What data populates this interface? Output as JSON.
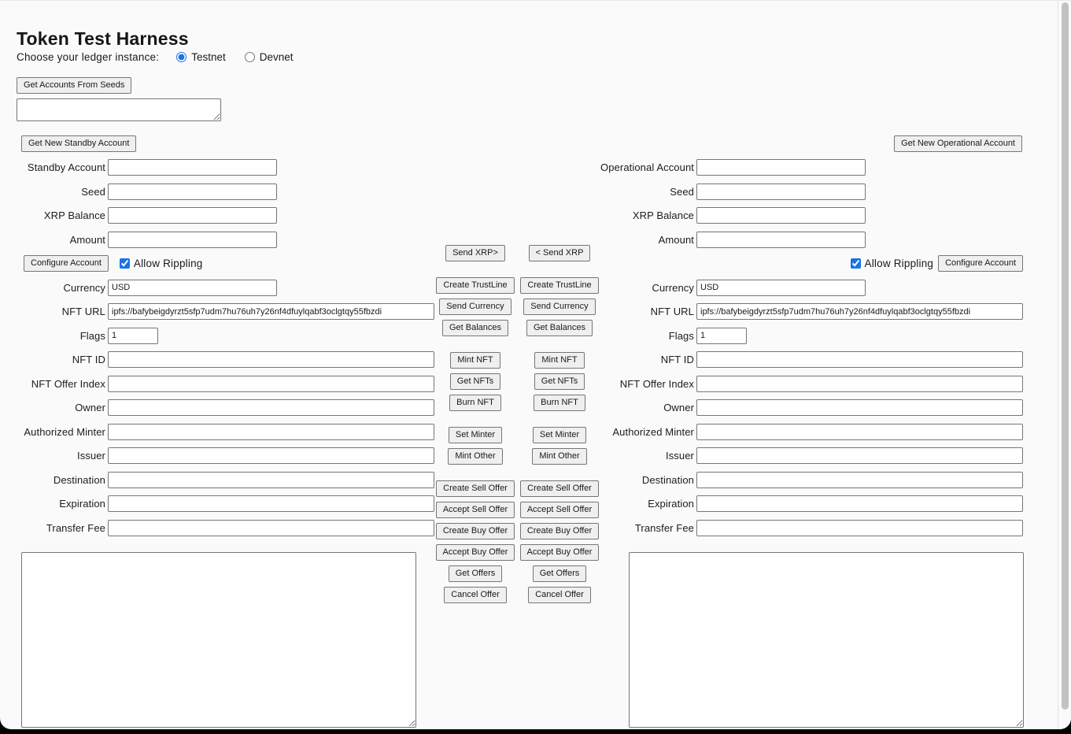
{
  "page": {
    "title": "Token Test Harness"
  },
  "ledger_selector": {
    "label": "Choose your ledger instance:",
    "options": [
      {
        "label": "Testnet",
        "selected": true
      },
      {
        "label": "Devnet",
        "selected": false
      }
    ]
  },
  "seed_loader": {
    "button_label": "Get Accounts From Seeds",
    "seeds_value": ""
  },
  "standby": {
    "new_account_button": "Get New Standby Account",
    "account_fields": [
      {
        "label": "Standby Account",
        "value": ""
      },
      {
        "label": "Seed",
        "value": ""
      },
      {
        "label": "XRP Balance",
        "value": ""
      },
      {
        "label": "Amount",
        "value": ""
      }
    ],
    "configure": {
      "button": "Configure Account",
      "checkbox_label": "Allow Rippling",
      "checked": true
    },
    "token_fields": [
      {
        "label": "Currency",
        "value": "USD"
      },
      {
        "label": "NFT URL",
        "value": "ipfs://bafybeigdyrzt5sfp7udm7hu76uh7y26nf4dfuylqabf3oclgtqy55fbzdi"
      },
      {
        "label": "Flags",
        "value": "1"
      },
      {
        "label": "NFT ID",
        "value": ""
      },
      {
        "label": "NFT Offer Index",
        "value": ""
      },
      {
        "label": "Owner",
        "value": ""
      },
      {
        "label": "Authorized Minter",
        "value": ""
      },
      {
        "label": "Issuer",
        "value": ""
      },
      {
        "label": "Destination",
        "value": ""
      },
      {
        "label": "Expiration",
        "value": ""
      },
      {
        "label": "Transfer Fee",
        "value": ""
      }
    ],
    "results_value": ""
  },
  "operational": {
    "new_account_button": "Get New Operational Account",
    "account_fields": [
      {
        "label": "Operational Account",
        "value": ""
      },
      {
        "label": "Seed",
        "value": ""
      },
      {
        "label": "XRP Balance",
        "value": ""
      },
      {
        "label": "Amount",
        "value": ""
      }
    ],
    "configure": {
      "button": "Configure Account",
      "checkbox_label": "Allow Rippling",
      "checked": true
    },
    "token_fields": [
      {
        "label": "Currency",
        "value": "USD"
      },
      {
        "label": "NFT URL",
        "value": "ipfs://bafybeigdyrzt5sfp7udm7hu76uh7y26nf4dfuylqabf3oclgtqy55fbzdi"
      },
      {
        "label": "Flags",
        "value": "1"
      },
      {
        "label": "NFT ID",
        "value": ""
      },
      {
        "label": "NFT Offer Index",
        "value": ""
      },
      {
        "label": "Owner",
        "value": ""
      },
      {
        "label": "Authorized Minter",
        "value": ""
      },
      {
        "label": "Issuer",
        "value": ""
      },
      {
        "label": "Destination",
        "value": ""
      },
      {
        "label": "Expiration",
        "value": ""
      },
      {
        "label": "Transfer Fee",
        "value": ""
      }
    ],
    "results_value": ""
  },
  "actions": {
    "standby_column": [
      "Send XRP>",
      "Create TrustLine",
      "Send Currency",
      "Get Balances",
      "Mint NFT",
      "Get NFTs",
      "Burn NFT",
      "Set Minter",
      "Mint Other",
      "Create Sell Offer",
      "Accept Sell Offer",
      "Create Buy Offer",
      "Accept Buy Offer",
      "Get Offers",
      "Cancel Offer"
    ],
    "operational_column": [
      "< Send XRP",
      "Create TrustLine",
      "Send Currency",
      "Get Balances",
      "Mint NFT",
      "Get NFTs",
      "Burn NFT",
      "Set Minter",
      "Mint Other",
      "Create Sell Offer",
      "Accept Sell Offer",
      "Create Buy Offer",
      "Accept Buy Offer",
      "Get Offers",
      "Cancel Offer"
    ]
  },
  "colors": {
    "accent": "#1a73e8",
    "page_bg": "#fafafa"
  }
}
